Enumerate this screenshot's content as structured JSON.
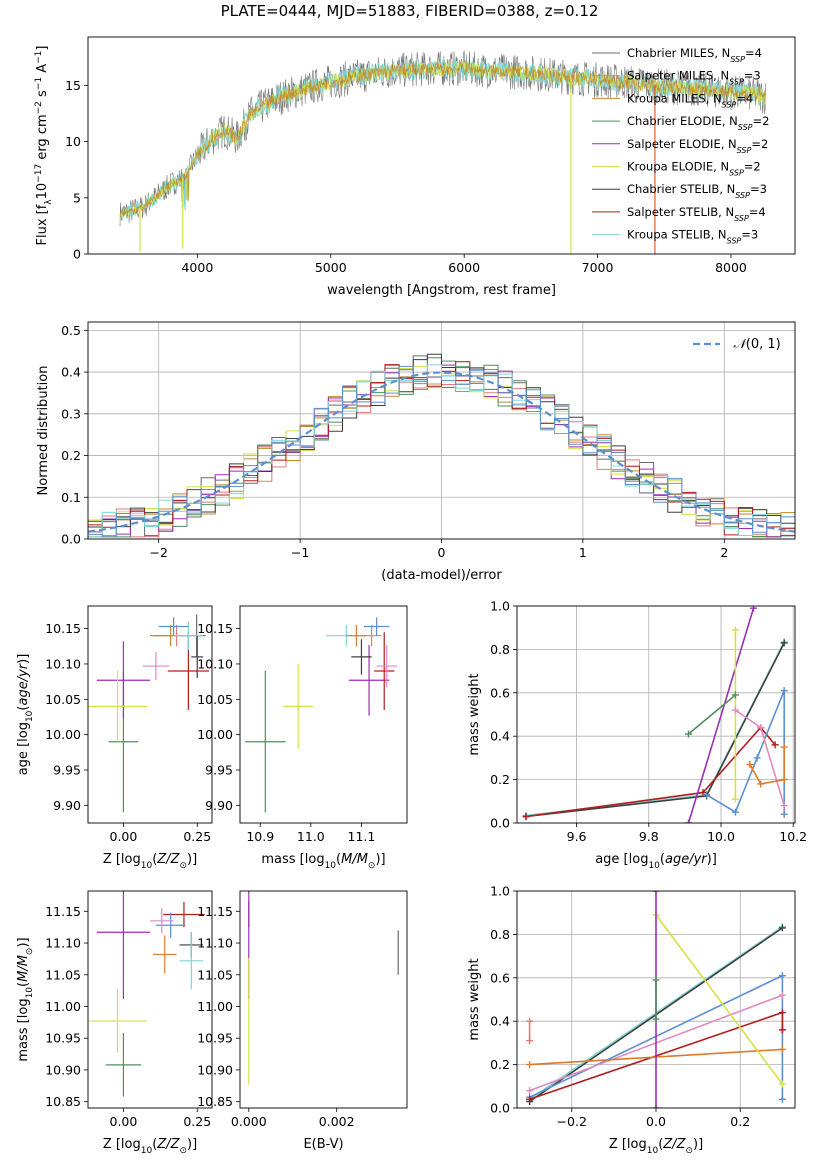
{
  "figure": {
    "title": "PLATE=0444, MJD=51883, FIBERID=0388, z=0.12"
  },
  "colors": {
    "Chabrier MILES": "#6b6b6b",
    "Salpeter MILES": "#e07b7b",
    "Kroupa MILES": "#c08a2a",
    "Chabrier ELODIE": "#4f8f5f",
    "Salpeter ELODIE": "#9a2fb8",
    "Kroupa ELODIE": "#d6e04a",
    "Chabrier STELIB": "#3f3f3f",
    "Salpeter STELIB": "#b01e1e",
    "Kroupa STELIB": "#7fd6d6",
    "gaussian": "#5b8fd1",
    "age_z_blue": "#5b8fd1",
    "age_z_orange": "#e07a2a",
    "age_z_pink": "#e08ac0"
  },
  "chart_data": [
    {
      "id": "spectrum",
      "type": "line",
      "title": "",
      "xlabel": "wavelength [Angstrom, rest frame]",
      "ylabel": "Flux [f_λ 10^-17 erg cm^-2 s^-1 A^-1]",
      "xlim": [
        3180,
        8480
      ],
      "ylim": [
        0,
        19.3
      ],
      "xticks": [
        4000,
        5000,
        6000,
        7000,
        8000
      ],
      "yticks": [
        0,
        5,
        10,
        15
      ],
      "grid": false,
      "legend_position": "top-right",
      "legend": [
        {
          "label": "Chabrier MILES, N",
          "sub": "SSP",
          "suffix": "=4"
        },
        {
          "label": "Salpeter MILES, N",
          "sub": "SSP",
          "suffix": "=3"
        },
        {
          "label": "Kroupa MILES, N",
          "sub": "SSP",
          "suffix": "=4"
        },
        {
          "label": "Chabrier ELODIE, N",
          "sub": "SSP",
          "suffix": "=2"
        },
        {
          "label": "Salpeter ELODIE, N",
          "sub": "SSP",
          "suffix": "=2"
        },
        {
          "label": "Kroupa ELODIE, N",
          "sub": "SSP",
          "suffix": "=2"
        },
        {
          "label": "Chabrier STELIB, N",
          "sub": "SSP",
          "suffix": "=3"
        },
        {
          "label": "Salpeter STELIB, N",
          "sub": "SSP",
          "suffix": "=4"
        },
        {
          "label": "Kroupa STELIB, N",
          "sub": "SSP",
          "suffix": "=3"
        }
      ],
      "continuum": [
        [
          3420,
          3.6
        ],
        [
          3500,
          3.8
        ],
        [
          3600,
          4.2
        ],
        [
          3700,
          5.2
        ],
        [
          3800,
          6.2
        ],
        [
          3900,
          6.8
        ],
        [
          4000,
          8.7
        ],
        [
          4100,
          10.2
        ],
        [
          4200,
          11.0
        ],
        [
          4300,
          10.3
        ],
        [
          4400,
          12.5
        ],
        [
          4500,
          13.2
        ],
        [
          4600,
          13.8
        ],
        [
          4700,
          14.3
        ],
        [
          4800,
          14.6
        ],
        [
          4900,
          15.0
        ],
        [
          5000,
          15.3
        ],
        [
          5200,
          15.8
        ],
        [
          5400,
          16.2
        ],
        [
          5600,
          16.4
        ],
        [
          5800,
          16.5
        ],
        [
          6000,
          16.5
        ],
        [
          6200,
          16.3
        ],
        [
          6400,
          16.2
        ],
        [
          6600,
          16.0
        ],
        [
          6800,
          15.7
        ],
        [
          7000,
          15.5
        ],
        [
          7200,
          15.3
        ],
        [
          7400,
          15.0
        ],
        [
          7600,
          14.8
        ],
        [
          7800,
          14.6
        ],
        [
          8000,
          14.4
        ],
        [
          8200,
          14.2
        ],
        [
          8260,
          14.0
        ]
      ],
      "dips": [
        [
          3570,
          0.2
        ],
        [
          3890,
          0.5
        ],
        [
          6800,
          0.0
        ],
        [
          7430,
          0.0
        ]
      ]
    },
    {
      "id": "residuals",
      "type": "histogram",
      "xlabel": "(data-model)/error",
      "ylabel": "Normed distribution",
      "xlim": [
        -2.5,
        2.5
      ],
      "ylim": [
        0,
        0.52
      ],
      "xticks": [
        -2,
        -1,
        0,
        1,
        2
      ],
      "yticks": [
        0.0,
        0.1,
        0.2,
        0.3,
        0.4,
        0.5
      ],
      "grid": true,
      "legend_position": "top-right",
      "legend": "N(0,1)",
      "bin_width": 0.1
    },
    {
      "id": "age-vs-z",
      "type": "errorbar",
      "xlabel": "Z [log10(Z/Z⊙)]",
      "ylabel": "age [log10(age/yr)]",
      "xlim": [
        -0.12,
        0.3
      ],
      "ylim": [
        9.875,
        10.182
      ],
      "xticks": [
        0.0,
        0.25
      ],
      "yticks": [
        9.9,
        9.95,
        10.0,
        10.05,
        10.1,
        10.15
      ],
      "points": [
        {
          "s": "Chabrier MILES",
          "x": 0.248,
          "y": 10.14,
          "xe": 0.03,
          "ye": 0.03
        },
        {
          "s": "Salpeter MILES",
          "x": 0.18,
          "y": 10.14,
          "xe": 0.08,
          "ye": 0.015
        },
        {
          "s": "Kroupa MILES",
          "x": 0.16,
          "y": 10.14,
          "xe": 0.07,
          "ye": 0.015
        },
        {
          "s": "Chabrier ELODIE",
          "x": 0.0,
          "y": 9.99,
          "xe": 0.05,
          "ye": 0.1
        },
        {
          "s": "Salpeter ELODIE",
          "x": 0.0,
          "y": 10.077,
          "xe": 0.09,
          "ye": 0.055
        },
        {
          "s": "Kroupa ELODIE",
          "x": -0.02,
          "y": 10.04,
          "xe": 0.1,
          "ye": 0.05
        },
        {
          "s": "Chabrier STELIB",
          "x": 0.25,
          "y": 10.11,
          "xe": 0.02,
          "ye": 0.03
        },
        {
          "s": "Salpeter STELIB",
          "x": 0.22,
          "y": 10.09,
          "xe": 0.07,
          "ye": 0.055
        },
        {
          "s": "Kroupa STELIB",
          "x": 0.22,
          "y": 10.14,
          "xe": 0.05,
          "ye": 0.02
        },
        {
          "s": "age_z_blue",
          "x": 0.17,
          "y": 10.153,
          "xe": 0.05,
          "ye": 0.013
        },
        {
          "s": "age_z_pink",
          "x": 0.11,
          "y": 10.097,
          "xe": 0.045,
          "ye": 0.02
        }
      ]
    },
    {
      "id": "age-vs-mass",
      "type": "errorbar",
      "xlabel": "mass [log10(M/M⊙)]",
      "ylabel": "",
      "xlim": [
        10.86,
        11.19
      ],
      "ylim": [
        9.875,
        10.182
      ],
      "xticks": [
        10.9,
        11.0,
        11.1
      ],
      "yticks": [
        9.9,
        9.95,
        10.0,
        10.05,
        10.1,
        10.15
      ],
      "points": [
        {
          "s": "Chabrier ELODIE",
          "x": 10.91,
          "y": 9.99,
          "xe": 0.04,
          "ye": 0.1
        },
        {
          "s": "Kroupa ELODIE",
          "x": 10.975,
          "y": 10.04,
          "xe": 0.03,
          "ye": 0.06
        },
        {
          "s": "Salpeter ELODIE",
          "x": 11.115,
          "y": 10.077,
          "xe": 0.04,
          "ye": 0.05
        },
        {
          "s": "Salpeter STELIB",
          "x": 11.145,
          "y": 10.09,
          "xe": 0.02,
          "ye": 0.055
        },
        {
          "s": "Chabrier STELIB",
          "x": 11.1,
          "y": 10.11,
          "xe": 0.02,
          "ye": 0.025
        },
        {
          "s": "Salpeter MILES",
          "x": 11.12,
          "y": 10.14,
          "xe": 0.02,
          "ye": 0.015
        },
        {
          "s": "Kroupa STELIB",
          "x": 11.07,
          "y": 10.14,
          "xe": 0.04,
          "ye": 0.015
        },
        {
          "s": "age_z_blue",
          "x": 11.13,
          "y": 10.153,
          "xe": 0.025,
          "ye": 0.013
        },
        {
          "s": "age_z_pink",
          "x": 11.15,
          "y": 10.097,
          "xe": 0.02,
          "ye": 0.03
        },
        {
          "s": "age_z_orange",
          "x": 11.09,
          "y": 10.14,
          "xe": 0.02,
          "ye": 0.015
        }
      ]
    },
    {
      "id": "weight-vs-age",
      "type": "line",
      "xlabel": "age [log10(age/yr)]",
      "ylabel": "mass weight",
      "xlim": [
        9.435,
        10.205
      ],
      "ylim": [
        0,
        1.0
      ],
      "xticks": [
        9.6,
        9.8,
        10.0,
        10.2
      ],
      "yticks": [
        0.0,
        0.2,
        0.4,
        0.6,
        0.8,
        1.0
      ],
      "grid": true,
      "series": [
        {
          "s": "Kroupa STELIB",
          "x": [
            9.46,
            9.96,
            10.175
          ],
          "y": [
            0.035,
            0.13,
            0.835
          ]
        },
        {
          "s": "Chabrier STELIB",
          "x": [
            9.46,
            9.96,
            10.175
          ],
          "y": [
            0.03,
            0.125,
            0.83
          ]
        },
        {
          "s": "Salpeter STELIB",
          "x": [
            9.46,
            9.95,
            10.11,
            10.15
          ],
          "y": [
            0.03,
            0.14,
            0.44,
            0.36
          ]
        },
        {
          "s": "age_z_blue",
          "x": [
            9.96,
            10.04,
            10.1,
            10.175,
            10.175
          ],
          "y": [
            0.13,
            0.05,
            0.3,
            0.61,
            0.04
          ]
        },
        {
          "s": "Salpeter ELODIE",
          "x": [
            9.91,
            10.09
          ],
          "y": [
            0.0,
            0.99
          ]
        },
        {
          "s": "Kroupa ELODIE",
          "x": [
            10.04,
            10.04
          ],
          "y": [
            0.89,
            0.11
          ]
        },
        {
          "s": "Chabrier ELODIE",
          "x": [
            9.91,
            10.04
          ],
          "y": [
            0.41,
            0.59
          ]
        },
        {
          "s": "age_z_pink",
          "x": [
            10.04,
            10.11,
            10.175
          ],
          "y": [
            0.52,
            0.44,
            0.08
          ]
        },
        {
          "s": "age_z_orange",
          "x": [
            10.08,
            10.11,
            10.175,
            10.175
          ],
          "y": [
            0.27,
            0.18,
            0.2,
            0.35
          ]
        }
      ]
    },
    {
      "id": "mass-vs-z",
      "type": "errorbar",
      "xlabel": "Z [log10(Z/Z⊙)]",
      "ylabel": "mass [log10(M/M⊙)]",
      "xlim": [
        -0.12,
        0.3
      ],
      "ylim": [
        10.84,
        11.182
      ],
      "xticks": [
        0.0,
        0.25
      ],
      "yticks": [
        10.85,
        10.9,
        10.95,
        11.0,
        11.05,
        11.1,
        11.15
      ],
      "points": [
        {
          "s": "Salpeter STELIB",
          "x": 0.205,
          "y": 11.145,
          "xe": 0.07,
          "ye": 0.02
        },
        {
          "s": "Chabrier STELIB",
          "x": 0.23,
          "y": 11.097,
          "xe": 0.04,
          "ye": 0.02
        },
        {
          "s": "Kroupa STELIB",
          "x": 0.23,
          "y": 11.072,
          "xe": 0.04,
          "ye": 0.045
        },
        {
          "s": "Salpeter ELODIE",
          "x": 0.0,
          "y": 11.117,
          "xe": 0.09,
          "ye": 0.105
        },
        {
          "s": "age_z_blue",
          "x": 0.16,
          "y": 11.128,
          "xe": 0.05,
          "ye": 0.02
        },
        {
          "s": "age_z_pink",
          "x": 0.13,
          "y": 11.135,
          "xe": 0.04,
          "ye": 0.02
        },
        {
          "s": "age_z_orange",
          "x": 0.14,
          "y": 11.082,
          "xe": 0.04,
          "ye": 0.03
        },
        {
          "s": "Kroupa ELODIE",
          "x": -0.02,
          "y": 10.977,
          "xe": 0.1,
          "ye": 0.05
        },
        {
          "s": "Chabrier ELODIE",
          "x": 0.0,
          "y": 10.908,
          "xe": 0.06,
          "ye": 0.05
        }
      ]
    },
    {
      "id": "mass-vs-ebv",
      "type": "errorbar",
      "xlabel": "E(B-V)",
      "ylabel": "",
      "xlim": [
        -0.0002,
        0.0036
      ],
      "ylim": [
        10.84,
        11.182
      ],
      "xticks": [
        0.0,
        0.002
      ],
      "yticks": [
        10.85,
        10.9,
        10.95,
        11.0,
        11.05,
        11.1,
        11.15
      ],
      "points": [
        {
          "s": "Salpeter STELIB",
          "x": 0.0,
          "y": 11.145,
          "xe": 0.0,
          "ye": 0.02
        },
        {
          "s": "Salpeter ELODIE",
          "x": 0.0,
          "y": 11.117,
          "xe": 0.0,
          "ye": 0.105
        },
        {
          "s": "Kroupa ELODIE",
          "x": 0.0,
          "y": 10.977,
          "xe": 0.0,
          "ye": 0.1
        },
        {
          "s": "Chabrier MILES",
          "x": 0.0034,
          "y": 11.085,
          "xe": 0.0,
          "ye": 0.035
        }
      ]
    },
    {
      "id": "weight-vs-z",
      "type": "line",
      "xlabel": "Z [log10(Z/Z⊙)]",
      "ylabel": "mass weight",
      "xlim": [
        -0.33,
        0.33
      ],
      "ylim": [
        0,
        1.0
      ],
      "xticks": [
        -0.2,
        0.0,
        0.2
      ],
      "yticks": [
        0.0,
        0.2,
        0.4,
        0.6,
        0.8,
        1.0
      ],
      "grid": true,
      "series": [
        {
          "s": "Kroupa STELIB",
          "x": [
            -0.3,
            0.3
          ],
          "y": [
            0.04,
            0.835
          ]
        },
        {
          "s": "Chabrier STELIB",
          "x": [
            -0.3,
            0.3
          ],
          "y": [
            0.03,
            0.83
          ]
        },
        {
          "s": "age_z_blue",
          "x": [
            -0.3,
            0.3,
            0.3
          ],
          "y": [
            0.05,
            0.61,
            0.04
          ]
        },
        {
          "s": "age_z_pink",
          "x": [
            -0.3,
            0.3
          ],
          "y": [
            0.08,
            0.52
          ]
        },
        {
          "s": "Salpeter STELIB",
          "x": [
            -0.3,
            0.3,
            0.3
          ],
          "y": [
            0.04,
            0.44,
            0.36
          ]
        },
        {
          "s": "age_z_orange",
          "x": [
            -0.3,
            0.3
          ],
          "y": [
            0.2,
            0.27
          ]
        },
        {
          "s": "Kroupa ELODIE",
          "x": [
            0.0,
            0.3
          ],
          "y": [
            0.89,
            0.11
          ]
        },
        {
          "s": "Salpeter ELODIE",
          "x": [
            0.0,
            0.0
          ],
          "y": [
            0.0,
            1.0
          ]
        },
        {
          "s": "Chabrier ELODIE",
          "x": [
            0.0,
            0.0
          ],
          "y": [
            0.41,
            0.59
          ]
        },
        {
          "s": "Salpeter MILES",
          "x": [
            -0.3,
            -0.3
          ],
          "y": [
            0.4,
            0.31
          ]
        }
      ]
    }
  ]
}
